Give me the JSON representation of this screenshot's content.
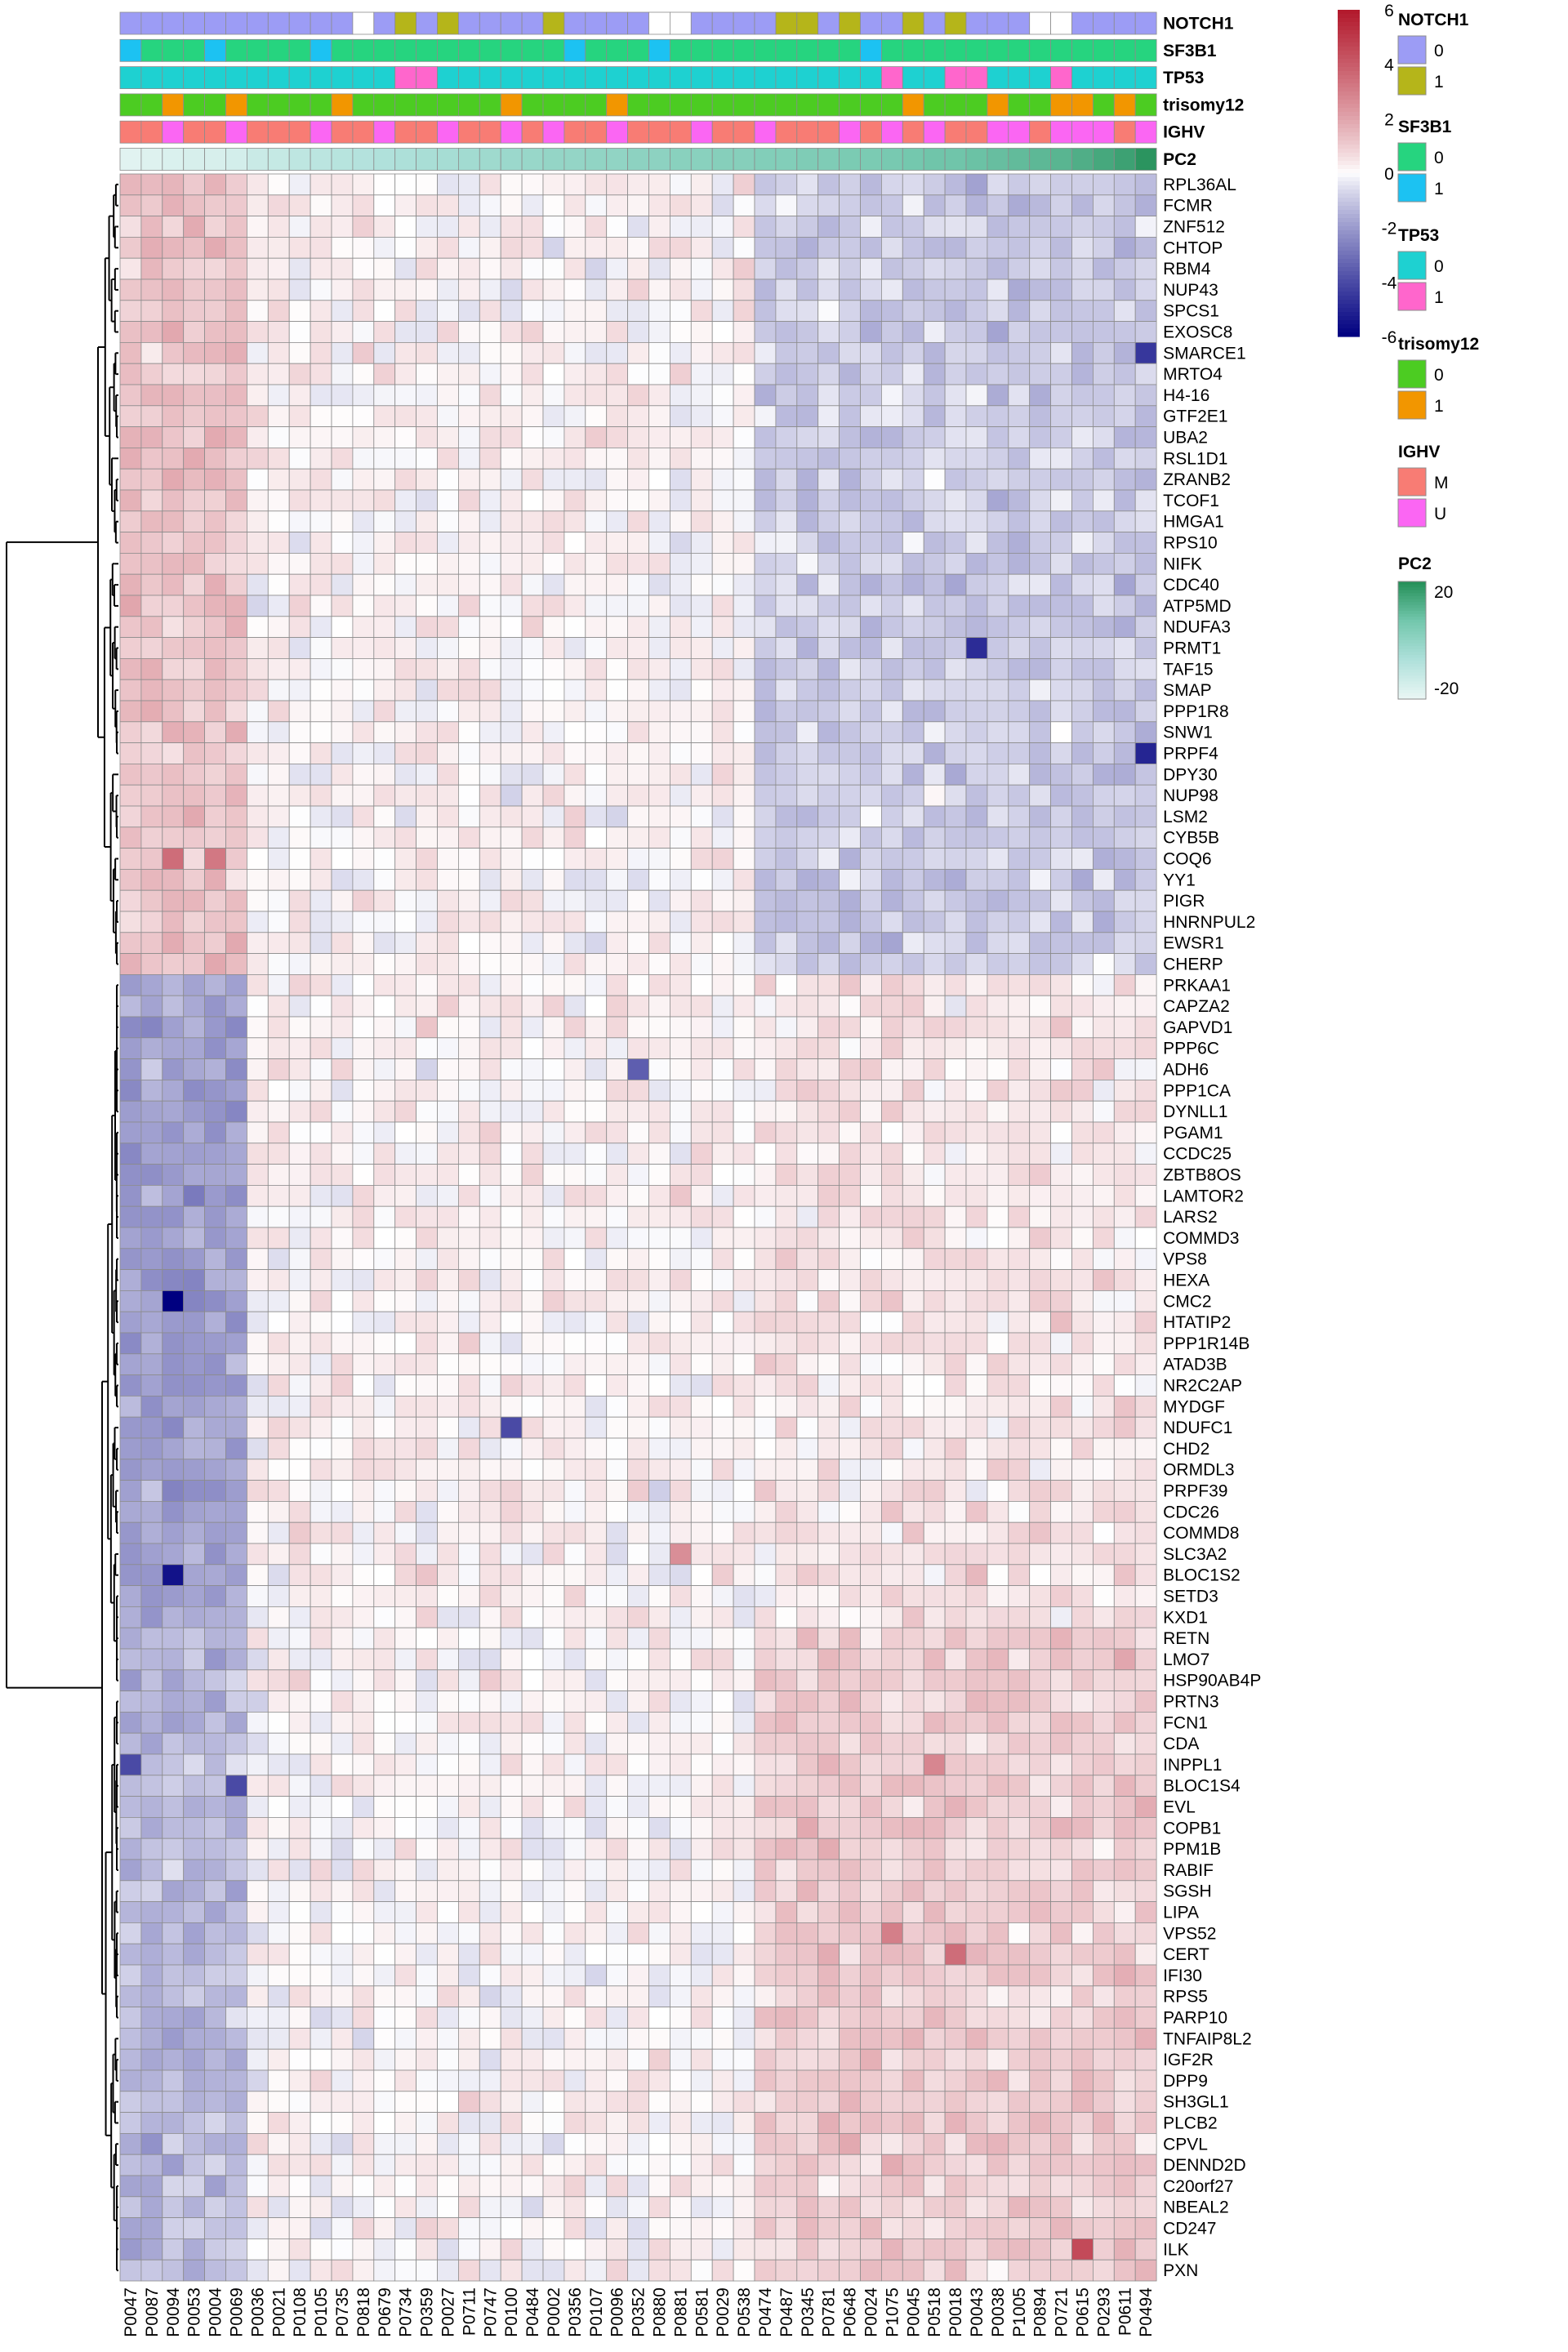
{
  "chart_data": {
    "type": "heatmap",
    "title": "",
    "color_scale": {
      "min": -6,
      "max": 6,
      "ticks": [
        6,
        4,
        2,
        0,
        -2,
        -4,
        -6
      ],
      "low_color": "#000080",
      "mid_color": "#ffffff",
      "high_color": "#b2182b"
    },
    "samples": [
      "P0047",
      "P0087",
      "P0094",
      "P0053",
      "P0004",
      "P0069",
      "P0036",
      "P0021",
      "P0108",
      "P0105",
      "P0735",
      "P0818",
      "P0679",
      "P0734",
      "P0359",
      "P0027",
      "P0711",
      "P0747",
      "P0100",
      "P0484",
      "P0002",
      "P0356",
      "P0107",
      "P0096",
      "P0352",
      "P0880",
      "P0881",
      "P0581",
      "P0029",
      "P0538",
      "P0474",
      "P0487",
      "P0345",
      "P0781",
      "P0648",
      "P0024",
      "P1075",
      "P0045",
      "P0518",
      "P0018",
      "P0043",
      "P0038",
      "P1005",
      "P0894",
      "P0721",
      "P0615",
      "P0293",
      "P0611",
      "P0494"
    ],
    "genes": [
      "RPL36AL",
      "FCMR",
      "ZNF512",
      "CHTOP",
      "RBM4",
      "NUP43",
      "SPCS1",
      "EXOSC8",
      "SMARCE1",
      "MRTO4",
      "H4-16",
      "GTF2E1",
      "UBA2",
      "RSL1D1",
      "ZRANB2",
      "TCOF1",
      "HMGA1",
      "RPS10",
      "NIFK",
      "CDC40",
      "ATP5MD",
      "NDUFA3",
      "PRMT1",
      "TAF15",
      "SMAP",
      "PPP1R8",
      "SNW1",
      "PRPF4",
      "DPY30",
      "NUP98",
      "LSM2",
      "CYB5B",
      "COQ6",
      "YY1",
      "PIGR",
      "HNRNPUL2",
      "EWSR1",
      "CHERP",
      "PRKAA1",
      "CAPZA2",
      "GAPVD1",
      "PPP6C",
      "ADH6",
      "PPP1CA",
      "DYNLL1",
      "PGAM1",
      "CCDC25",
      "ZBTB8OS",
      "LAMTOR2",
      "LARS2",
      "COMMD3",
      "VPS8",
      "HEXA",
      "CMC2",
      "HTATIP2",
      "PPP1R14B",
      "ATAD3B",
      "NR2C2AP",
      "MYDGF",
      "NDUFC1",
      "CHD2",
      "ORMDL3",
      "PRPF39",
      "CDC26",
      "COMMD8",
      "SLC3A2",
      "BLOC1S2",
      "SETD3",
      "KXD1",
      "RETN",
      "LMO7",
      "HSP90AB4P",
      "PRTN3",
      "FCN1",
      "CDA",
      "INPPL1",
      "BLOC1S4",
      "EVL",
      "COPB1",
      "PPM1B",
      "RABIF",
      "SGSH",
      "LIPA",
      "VPS52",
      "CERT",
      "IFI30",
      "RPS5",
      "PARP10",
      "TNFAIP8L2",
      "IGF2R",
      "DPP9",
      "SH3GL1",
      "PLCB2",
      "CPVL",
      "DENND2D",
      "C20orf27",
      "NBEAL2",
      "CD247",
      "ILK",
      "PXN"
    ],
    "cluster_split_row": 38,
    "annotations": [
      {
        "name": "NOTCH1",
        "values": [
          0,
          0,
          0,
          0,
          0,
          0,
          0,
          0,
          0,
          0,
          0,
          null,
          0,
          1,
          0,
          1,
          0,
          0,
          0,
          0,
          1,
          0,
          0,
          0,
          0,
          null,
          null,
          0,
          0,
          0,
          0,
          1,
          1,
          0,
          1,
          0,
          0,
          1,
          0,
          1,
          0,
          0,
          0,
          null,
          null,
          0,
          0,
          0,
          0
        ]
      },
      {
        "name": "SF3B1",
        "values": [
          1,
          0,
          0,
          0,
          1,
          0,
          0,
          0,
          0,
          1,
          0,
          0,
          0,
          0,
          0,
          0,
          0,
          0,
          0,
          0,
          0,
          1,
          0,
          0,
          0,
          1,
          0,
          0,
          0,
          0,
          0,
          0,
          0,
          0,
          0,
          1,
          0,
          0,
          0,
          0,
          0,
          0,
          0,
          0,
          0,
          0,
          0,
          0,
          0
        ]
      },
      {
        "name": "TP53",
        "values": [
          0,
          0,
          0,
          0,
          0,
          0,
          0,
          0,
          0,
          0,
          0,
          0,
          0,
          1,
          1,
          0,
          0,
          0,
          0,
          0,
          0,
          0,
          0,
          0,
          0,
          0,
          0,
          0,
          0,
          0,
          0,
          0,
          0,
          0,
          0,
          0,
          1,
          0,
          0,
          1,
          1,
          0,
          0,
          0,
          1,
          0,
          0,
          0,
          0
        ]
      },
      {
        "name": "trisomy12",
        "values": [
          0,
          0,
          1,
          0,
          0,
          1,
          0,
          0,
          0,
          0,
          1,
          0,
          0,
          0,
          0,
          0,
          0,
          0,
          1,
          0,
          0,
          0,
          0,
          1,
          0,
          0,
          0,
          0,
          0,
          0,
          0,
          0,
          0,
          0,
          0,
          0,
          0,
          1,
          0,
          0,
          0,
          1,
          0,
          0,
          1,
          1,
          0,
          1,
          0
        ]
      },
      {
        "name": "IGHV",
        "values": [
          "M",
          "M",
          "U",
          "M",
          "M",
          "U",
          "M",
          "M",
          "M",
          "U",
          "M",
          "M",
          "U",
          "M",
          "M",
          "U",
          "M",
          "M",
          "U",
          "M",
          "U",
          "M",
          "M",
          "U",
          "M",
          "M",
          "M",
          "U",
          "M",
          "M",
          "U",
          "M",
          "M",
          "M",
          "U",
          "M",
          "U",
          "M",
          "U",
          "M",
          "M",
          "U",
          "U",
          "M",
          "U",
          "U",
          "U",
          "M",
          "U"
        ]
      },
      {
        "name": "PC2",
        "values": [
          -23,
          -22,
          -21,
          -20,
          -20,
          -19,
          -16,
          -15,
          -13,
          -12,
          -11,
          -10,
          -9,
          -8,
          -7,
          -6,
          -5,
          -4,
          -3,
          -2,
          -1,
          -1,
          0,
          0,
          1,
          1,
          2,
          2,
          3,
          3,
          4,
          4,
          5,
          5,
          6,
          6,
          7,
          8,
          9,
          9,
          10,
          11,
          12,
          13,
          14,
          16,
          18,
          20,
          24
        ]
      }
    ],
    "legends": [
      {
        "title": "NOTCH1",
        "items": [
          {
            "label": "0",
            "color": "#9c9cf5"
          },
          {
            "label": "1",
            "color": "#b5b51a"
          }
        ]
      },
      {
        "title": "SF3B1",
        "items": [
          {
            "label": "0",
            "color": "#26d47f"
          },
          {
            "label": "1",
            "color": "#1cc2f2"
          }
        ]
      },
      {
        "title": "TP53",
        "items": [
          {
            "label": "0",
            "color": "#1ed1d1"
          },
          {
            "label": "1",
            "color": "#ff66cc"
          }
        ]
      },
      {
        "title": "trisomy12",
        "items": [
          {
            "label": "0",
            "color": "#4ccc22"
          },
          {
            "label": "1",
            "color": "#f29600"
          }
        ]
      },
      {
        "title": "IGHV",
        "items": [
          {
            "label": "M",
            "color": "#f87c74"
          },
          {
            "label": "U",
            "color": "#fb66f3"
          }
        ]
      },
      {
        "title": "PC2",
        "items": [
          {
            "label": "20",
            "color": "#26915a"
          },
          {
            "label": "-20",
            "color": "#e8f6f4"
          }
        ]
      }
    ],
    "pc2_gradient": [
      "#e8f6f4",
      "#aee0da",
      "#73c7ad",
      "#26915a"
    ],
    "blocks": [
      {
        "rows": [
          0,
          38
        ],
        "cols": [
          0,
          6
        ],
        "mean": 1.2
      },
      {
        "rows": [
          0,
          38
        ],
        "cols": [
          6,
          30
        ],
        "mean": 0.15
      },
      {
        "rows": [
          0,
          38
        ],
        "cols": [
          30,
          49
        ],
        "mean": -0.9
      },
      {
        "rows": [
          38,
          69
        ],
        "cols": [
          0,
          6
        ],
        "mean": -1.9
      },
      {
        "rows": [
          38,
          69
        ],
        "cols": [
          6,
          30
        ],
        "mean": 0.2
      },
      {
        "rows": [
          38,
          69
        ],
        "cols": [
          30,
          49
        ],
        "mean": 0.45
      },
      {
        "rows": [
          69,
          100
        ],
        "cols": [
          0,
          6
        ],
        "mean": -1.3
      },
      {
        "rows": [
          69,
          100
        ],
        "cols": [
          6,
          30
        ],
        "mean": 0.1
      },
      {
        "rows": [
          69,
          100
        ],
        "cols": [
          30,
          49
        ],
        "mean": 1.0
      }
    ],
    "notable_cells": [
      {
        "gene": "COQ6",
        "sample": "P0094",
        "value": 3.5
      },
      {
        "gene": "COQ6",
        "sample": "P0004",
        "value": 3.2
      },
      {
        "gene": "CMC2",
        "sample": "P0094",
        "value": -6
      },
      {
        "gene": "BLOC1S2",
        "sample": "P0094",
        "value": -5.5
      },
      {
        "gene": "PRMT1",
        "sample": "P0043",
        "value": -4.8
      },
      {
        "gene": "SMARCE1",
        "sample": "P0494",
        "value": -4.5
      },
      {
        "gene": "PRPF4",
        "sample": "P0494",
        "value": -5
      },
      {
        "gene": "ILK",
        "sample": "P0615",
        "value": 4.5
      },
      {
        "gene": "CERT",
        "sample": "P0018",
        "value": 3.5
      },
      {
        "gene": "VPS52",
        "sample": "P1075",
        "value": 3
      },
      {
        "gene": "INPPL1",
        "sample": "P0518",
        "value": 2.8
      },
      {
        "gene": "SLC3A2",
        "sample": "P0881",
        "value": 2.6
      },
      {
        "gene": "NDUFC1",
        "sample": "P0100",
        "value": -4
      },
      {
        "gene": "INPPL1",
        "sample": "P0047",
        "value": -4
      },
      {
        "gene": "BLOC1S4",
        "sample": "P0069",
        "value": -4
      },
      {
        "gene": "ADH6",
        "sample": "P0352",
        "value": -3.5
      }
    ]
  }
}
